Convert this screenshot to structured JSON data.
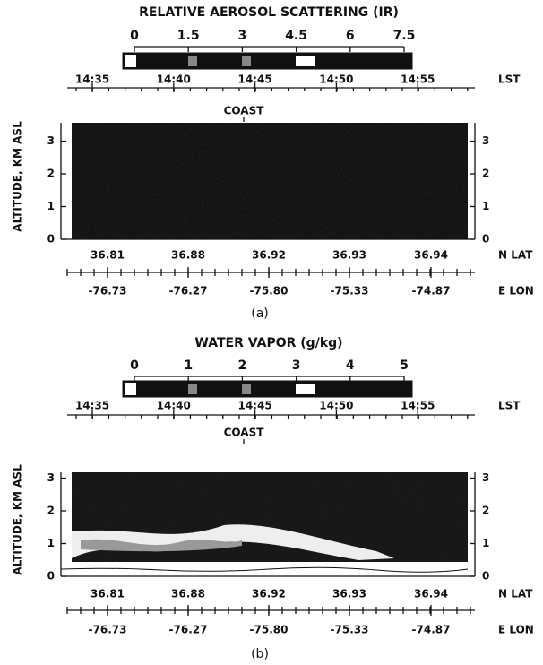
{
  "panels": [
    {
      "title": "RELATIVE AEROSOL SCATTERING (IR)",
      "colorbar_ticks": [
        "0",
        "1.5",
        "3",
        "4.5",
        "6",
        "7.5"
      ],
      "lst_ticks": [
        "14:35",
        "14:40",
        "14:45",
        "14:50",
        "14:55"
      ],
      "lst_label": "LST",
      "coast_label": "COAST",
      "y_axis_label": "ALTITUDE, KM ASL",
      "y_ticks": [
        "0",
        "1",
        "2",
        "3"
      ],
      "lat_ticks": [
        "36.81",
        "36.88",
        "36.92",
        "36.93",
        "36.94"
      ],
      "lat_label": "N LAT",
      "lon_ticks": [
        "-76.73",
        "-76.27",
        "-75.80",
        "-75.33",
        "-74.87"
      ],
      "lon_label": "E LON",
      "caption": "(a)"
    },
    {
      "title": "WATER VAPOR (g/kg)",
      "colorbar_ticks": [
        "0",
        "1",
        "2",
        "3",
        "4",
        "5"
      ],
      "lst_ticks": [
        "14:35",
        "14:40",
        "14:45",
        "14:50",
        "14:55"
      ],
      "lst_label": "LST",
      "coast_label": "COAST",
      "y_axis_label": "ALTITUDE, KM ASL",
      "y_ticks": [
        "0",
        "1",
        "2",
        "3"
      ],
      "lat_ticks": [
        "36.81",
        "36.88",
        "36.92",
        "36.93",
        "36.94"
      ],
      "lat_label": "N LAT",
      "lon_ticks": [
        "-76.73",
        "-76.27",
        "-75.80",
        "-75.33",
        "-74.87"
      ],
      "lon_label": "E LON",
      "caption": "(b)"
    }
  ]
}
